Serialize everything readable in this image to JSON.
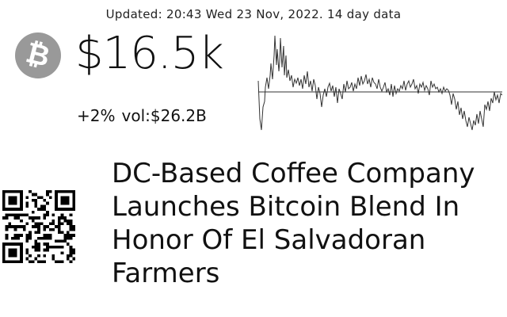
{
  "header": {
    "updated_text": "Updated: 20:43 Wed 23 Nov, 2022. 14 day data"
  },
  "coin": {
    "icon": "bitcoin-icon",
    "glyph": "₿",
    "color": "#999999"
  },
  "price": {
    "value": "$16.5k",
    "change": "+2%",
    "volume": "vol:$26.2B"
  },
  "news": {
    "headline": "DC-Based Coffee Company Launches Bitcoin Blend In Honor Of El Salvadoran Farmers"
  },
  "qr": {
    "icon": "qr-code-icon"
  }
}
